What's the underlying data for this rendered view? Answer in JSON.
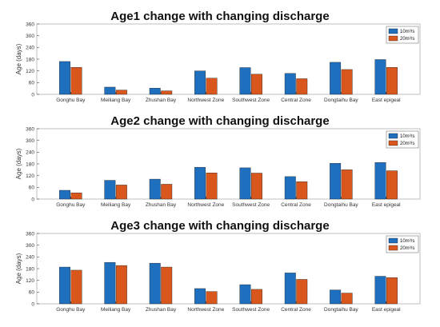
{
  "chart_data": [
    {
      "type": "bar",
      "title": "Age1 change with changing discharge",
      "ylabel": "Age (days)",
      "xlabel": "",
      "ylim": [
        0,
        360
      ],
      "yticks": [
        0,
        60,
        120,
        180,
        240,
        300,
        360
      ],
      "grid": false,
      "legend_position": "top-right",
      "categories": [
        "Gonghu Bay",
        "Meiliang Bay",
        "Zhushan Bay",
        "Northwest Zone",
        "Southwest Zone",
        "Central Zone",
        "Dongtaihu Bay",
        "East epigeal"
      ],
      "series": [
        {
          "name": "10m³/s",
          "color": "#1f6fbf",
          "values": [
            168,
            37,
            32,
            120,
            137,
            107,
            164,
            178
          ]
        },
        {
          "name": "20m³/s",
          "color": "#d9561c",
          "values": [
            138,
            22,
            18,
            83,
            103,
            80,
            127,
            138
          ]
        }
      ]
    },
    {
      "type": "bar",
      "title": "Age2 change with changing discharge",
      "ylabel": "Age (days)",
      "xlabel": "",
      "ylim": [
        0,
        360
      ],
      "yticks": [
        0,
        60,
        120,
        180,
        240,
        300,
        360
      ],
      "grid": false,
      "legend_position": "top-right",
      "categories": [
        "Gonghu Bay",
        "Meiliang Bay",
        "Zhushan Bay",
        "Northwest Zone",
        "Southwest Zone",
        "Central Zone",
        "Dongtaihu Bay",
        "East epigeal"
      ],
      "series": [
        {
          "name": "10m³/s",
          "color": "#1f6fbf",
          "values": [
            45,
            96,
            102,
            163,
            160,
            115,
            183,
            187
          ]
        },
        {
          "name": "20m³/s",
          "color": "#d9561c",
          "values": [
            32,
            72,
            76,
            134,
            133,
            89,
            150,
            145
          ]
        }
      ]
    },
    {
      "type": "bar",
      "title": "Age3 change with changing discharge",
      "ylabel": "Age (days)",
      "xlabel": "",
      "ylim": [
        0,
        360
      ],
      "yticks": [
        0,
        60,
        120,
        180,
        240,
        300,
        360
      ],
      "grid": false,
      "legend_position": "top-right",
      "categories": [
        "Gonghu Bay",
        "Meiliang Bay",
        "Zhushan Bay",
        "Northwest Zone",
        "Southwest Zone",
        "Central Zone",
        "Dongtaihu Bay",
        "East epigeal"
      ],
      "series": [
        {
          "name": "10m³/s",
          "color": "#1f6fbf",
          "values": [
            188,
            212,
            208,
            78,
            98,
            158,
            71,
            141
          ]
        },
        {
          "name": "20m³/s",
          "color": "#d9561c",
          "values": [
            172,
            196,
            188,
            63,
            74,
            125,
            55,
            134
          ]
        }
      ]
    }
  ]
}
